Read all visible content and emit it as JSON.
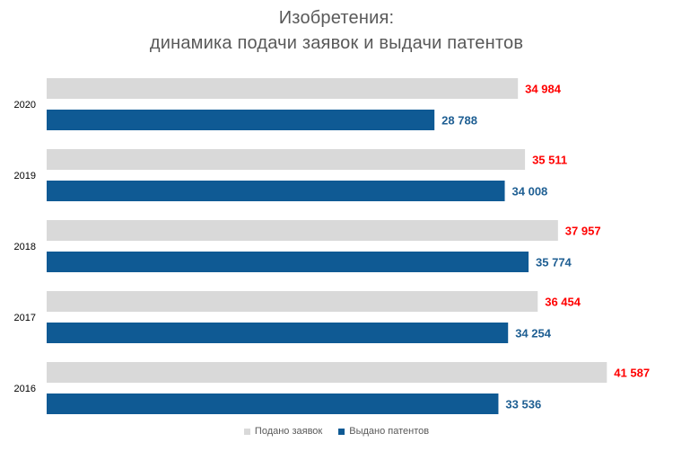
{
  "chart_data": {
    "type": "bar",
    "orientation": "horizontal",
    "title": "Изобретения:",
    "subtitle": "динамика подачи заявок и выдачи патентов",
    "categories": [
      "2020",
      "2019",
      "2018",
      "2017",
      "2016"
    ],
    "series": [
      {
        "name": "Подано заявок",
        "values": [
          34984,
          35511,
          37957,
          36454,
          41587
        ],
        "labels": [
          "34 984",
          "35 511",
          "37 957",
          "36 454",
          "41 587"
        ],
        "color": "#d9d9d9",
        "label_color": "#ff0000"
      },
      {
        "name": "Выдано патентов",
        "values": [
          28788,
          34008,
          35774,
          34254,
          33536
        ],
        "labels": [
          "28 788",
          "34 008",
          "35 774",
          "34 254",
          "33 536"
        ],
        "color": "#0f5a94",
        "label_color": "#1f5f93"
      }
    ],
    "xlim": [
      0,
      42500
    ],
    "grid": false,
    "legend_position": "bottom"
  }
}
